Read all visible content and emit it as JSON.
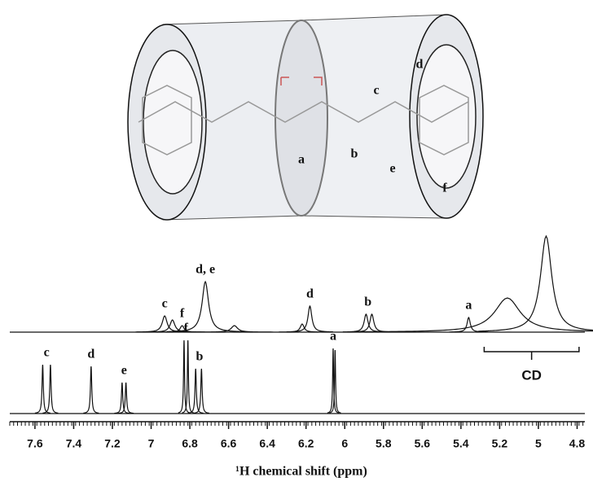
{
  "chart_data": {
    "type": "line",
    "xlabel": "¹H chemical shift (ppm)",
    "xlim": [
      7.73,
      4.76
    ],
    "xticks": [
      7.6,
      7.4,
      7.2,
      7.0,
      6.8,
      6.6,
      6.4,
      6.2,
      6.0,
      5.8,
      5.6,
      5.4,
      5.2,
      5.0,
      4.8
    ],
    "color": "#111111",
    "series": [
      {
        "x": [
          6.93,
          6.89,
          6.84,
          6.72,
          6.57,
          6.22,
          6.18,
          5.89,
          5.86,
          5.36,
          5.16,
          4.96
        ],
        "values": [
          20,
          15,
          8,
          62,
          8,
          10,
          32,
          22,
          22,
          18,
          42,
          118
        ],
        "widths": [
          0.015,
          0.015,
          0.012,
          0.02,
          0.02,
          0.012,
          0.012,
          0.012,
          0.012,
          0.01,
          0.08,
          0.035
        ],
        "annotations": [
          {
            "text": "c",
            "x": 6.93
          },
          {
            "text": "f",
            "x": 6.84
          },
          {
            "text": "d, e",
            "x": 6.72
          },
          {
            "text": "d",
            "x": 6.18
          },
          {
            "text": "b",
            "x": 5.88
          },
          {
            "text": "a",
            "x": 5.36
          }
        ]
      },
      {
        "x": [
          7.56,
          7.52,
          7.31,
          7.15,
          7.13,
          6.83,
          6.81,
          6.77,
          6.74,
          6.06,
          6.05
        ],
        "values": [
          60,
          60,
          58,
          38,
          38,
          90,
          90,
          55,
          55,
          80,
          78
        ],
        "widths": [
          0.004,
          0.004,
          0.004,
          0.004,
          0.004,
          0.003,
          0.003,
          0.004,
          0.004,
          0.003,
          0.003
        ],
        "annotations": [
          {
            "text": "c",
            "x": 7.54
          },
          {
            "text": "d",
            "x": 7.31
          },
          {
            "text": "e",
            "x": 7.14
          },
          {
            "text": "f",
            "x": 6.82
          },
          {
            "text": "b",
            "x": 6.75
          },
          {
            "text": "a",
            "x": 6.06
          }
        ]
      }
    ],
    "bracket": {
      "text": "CD",
      "from": 5.28,
      "to": 4.79
    }
  },
  "diagram": {
    "labels": [
      "a",
      "b",
      "c",
      "d",
      "e",
      "f"
    ]
  }
}
